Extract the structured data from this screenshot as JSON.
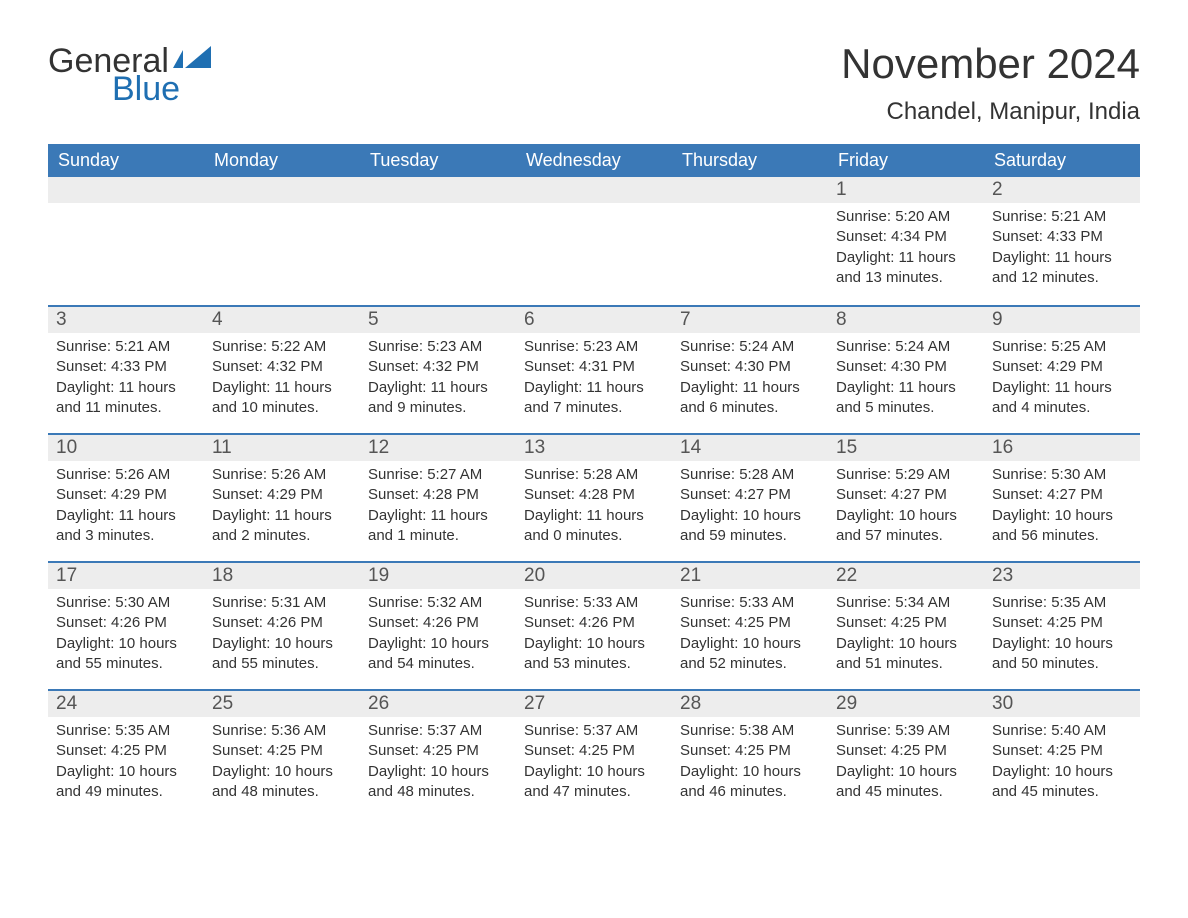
{
  "logo": {
    "word1": "General",
    "word2": "Blue",
    "flag_color": "#1f6fb2",
    "text_color_general": "#333333",
    "text_color_blue": "#1f6fb2"
  },
  "title": {
    "month": "November 2024",
    "location": "Chandel, Manipur, India",
    "month_fontsize": 42,
    "location_fontsize": 24,
    "color": "#333333"
  },
  "colors": {
    "header_bg": "#3b79b7",
    "header_text": "#ffffff",
    "daynum_bg": "#ededed",
    "row_border": "#3b79b7",
    "body_text": "#333333",
    "background": "#ffffff"
  },
  "fontsize": {
    "weekday_header": 18,
    "day_number": 19,
    "body": 15
  },
  "weekdays": [
    "Sunday",
    "Monday",
    "Tuesday",
    "Wednesday",
    "Thursday",
    "Friday",
    "Saturday"
  ],
  "leading_blanks": 5,
  "days": [
    {
      "n": "1",
      "sunrise": "Sunrise: 5:20 AM",
      "sunset": "Sunset: 4:34 PM",
      "daylight": "Daylight: 11 hours and 13 minutes."
    },
    {
      "n": "2",
      "sunrise": "Sunrise: 5:21 AM",
      "sunset": "Sunset: 4:33 PM",
      "daylight": "Daylight: 11 hours and 12 minutes."
    },
    {
      "n": "3",
      "sunrise": "Sunrise: 5:21 AM",
      "sunset": "Sunset: 4:33 PM",
      "daylight": "Daylight: 11 hours and 11 minutes."
    },
    {
      "n": "4",
      "sunrise": "Sunrise: 5:22 AM",
      "sunset": "Sunset: 4:32 PM",
      "daylight": "Daylight: 11 hours and 10 minutes."
    },
    {
      "n": "5",
      "sunrise": "Sunrise: 5:23 AM",
      "sunset": "Sunset: 4:32 PM",
      "daylight": "Daylight: 11 hours and 9 minutes."
    },
    {
      "n": "6",
      "sunrise": "Sunrise: 5:23 AM",
      "sunset": "Sunset: 4:31 PM",
      "daylight": "Daylight: 11 hours and 7 minutes."
    },
    {
      "n": "7",
      "sunrise": "Sunrise: 5:24 AM",
      "sunset": "Sunset: 4:30 PM",
      "daylight": "Daylight: 11 hours and 6 minutes."
    },
    {
      "n": "8",
      "sunrise": "Sunrise: 5:24 AM",
      "sunset": "Sunset: 4:30 PM",
      "daylight": "Daylight: 11 hours and 5 minutes."
    },
    {
      "n": "9",
      "sunrise": "Sunrise: 5:25 AM",
      "sunset": "Sunset: 4:29 PM",
      "daylight": "Daylight: 11 hours and 4 minutes."
    },
    {
      "n": "10",
      "sunrise": "Sunrise: 5:26 AM",
      "sunset": "Sunset: 4:29 PM",
      "daylight": "Daylight: 11 hours and 3 minutes."
    },
    {
      "n": "11",
      "sunrise": "Sunrise: 5:26 AM",
      "sunset": "Sunset: 4:29 PM",
      "daylight": "Daylight: 11 hours and 2 minutes."
    },
    {
      "n": "12",
      "sunrise": "Sunrise: 5:27 AM",
      "sunset": "Sunset: 4:28 PM",
      "daylight": "Daylight: 11 hours and 1 minute."
    },
    {
      "n": "13",
      "sunrise": "Sunrise: 5:28 AM",
      "sunset": "Sunset: 4:28 PM",
      "daylight": "Daylight: 11 hours and 0 minutes."
    },
    {
      "n": "14",
      "sunrise": "Sunrise: 5:28 AM",
      "sunset": "Sunset: 4:27 PM",
      "daylight": "Daylight: 10 hours and 59 minutes."
    },
    {
      "n": "15",
      "sunrise": "Sunrise: 5:29 AM",
      "sunset": "Sunset: 4:27 PM",
      "daylight": "Daylight: 10 hours and 57 minutes."
    },
    {
      "n": "16",
      "sunrise": "Sunrise: 5:30 AM",
      "sunset": "Sunset: 4:27 PM",
      "daylight": "Daylight: 10 hours and 56 minutes."
    },
    {
      "n": "17",
      "sunrise": "Sunrise: 5:30 AM",
      "sunset": "Sunset: 4:26 PM",
      "daylight": "Daylight: 10 hours and 55 minutes."
    },
    {
      "n": "18",
      "sunrise": "Sunrise: 5:31 AM",
      "sunset": "Sunset: 4:26 PM",
      "daylight": "Daylight: 10 hours and 55 minutes."
    },
    {
      "n": "19",
      "sunrise": "Sunrise: 5:32 AM",
      "sunset": "Sunset: 4:26 PM",
      "daylight": "Daylight: 10 hours and 54 minutes."
    },
    {
      "n": "20",
      "sunrise": "Sunrise: 5:33 AM",
      "sunset": "Sunset: 4:26 PM",
      "daylight": "Daylight: 10 hours and 53 minutes."
    },
    {
      "n": "21",
      "sunrise": "Sunrise: 5:33 AM",
      "sunset": "Sunset: 4:25 PM",
      "daylight": "Daylight: 10 hours and 52 minutes."
    },
    {
      "n": "22",
      "sunrise": "Sunrise: 5:34 AM",
      "sunset": "Sunset: 4:25 PM",
      "daylight": "Daylight: 10 hours and 51 minutes."
    },
    {
      "n": "23",
      "sunrise": "Sunrise: 5:35 AM",
      "sunset": "Sunset: 4:25 PM",
      "daylight": "Daylight: 10 hours and 50 minutes."
    },
    {
      "n": "24",
      "sunrise": "Sunrise: 5:35 AM",
      "sunset": "Sunset: 4:25 PM",
      "daylight": "Daylight: 10 hours and 49 minutes."
    },
    {
      "n": "25",
      "sunrise": "Sunrise: 5:36 AM",
      "sunset": "Sunset: 4:25 PM",
      "daylight": "Daylight: 10 hours and 48 minutes."
    },
    {
      "n": "26",
      "sunrise": "Sunrise: 5:37 AM",
      "sunset": "Sunset: 4:25 PM",
      "daylight": "Daylight: 10 hours and 48 minutes."
    },
    {
      "n": "27",
      "sunrise": "Sunrise: 5:37 AM",
      "sunset": "Sunset: 4:25 PM",
      "daylight": "Daylight: 10 hours and 47 minutes."
    },
    {
      "n": "28",
      "sunrise": "Sunrise: 5:38 AM",
      "sunset": "Sunset: 4:25 PM",
      "daylight": "Daylight: 10 hours and 46 minutes."
    },
    {
      "n": "29",
      "sunrise": "Sunrise: 5:39 AM",
      "sunset": "Sunset: 4:25 PM",
      "daylight": "Daylight: 10 hours and 45 minutes."
    },
    {
      "n": "30",
      "sunrise": "Sunrise: 5:40 AM",
      "sunset": "Sunset: 4:25 PM",
      "daylight": "Daylight: 10 hours and 45 minutes."
    }
  ]
}
